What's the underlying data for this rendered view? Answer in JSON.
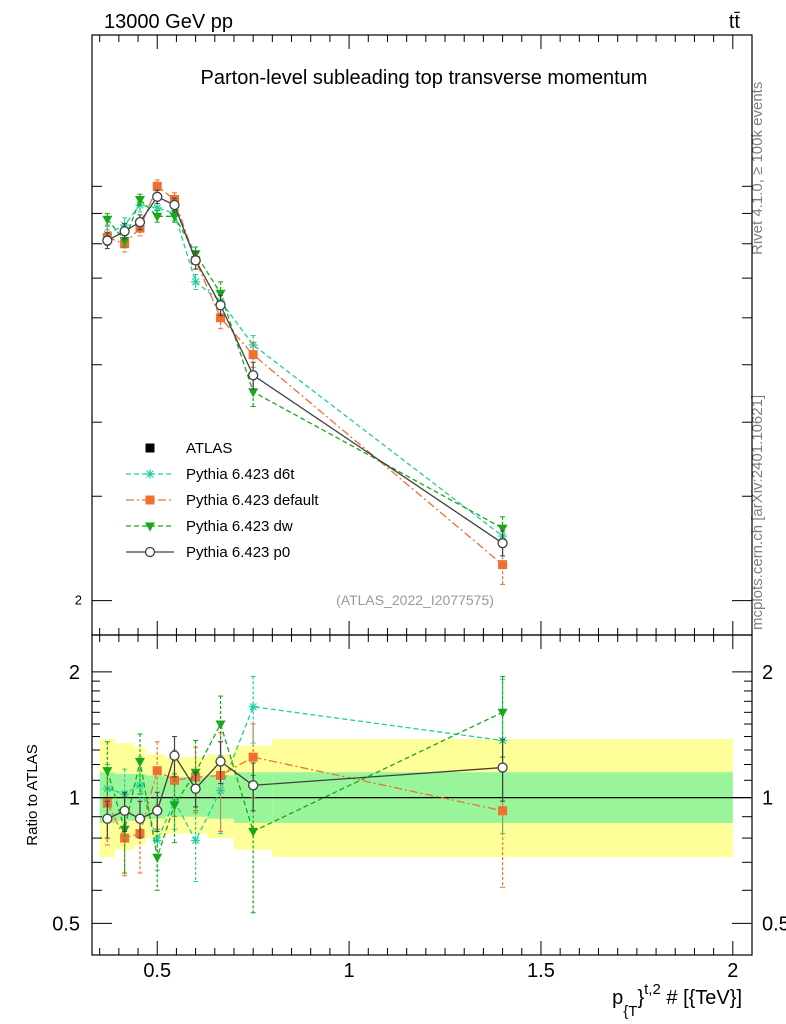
{
  "header": {
    "energy_label": "13000 GeV pp",
    "process_label": "tt̄"
  },
  "side_labels": {
    "rivet": "Rivet 4.1.0, ≥ 100k events",
    "source": "mcplots.cern.ch [arXiv:2401.10621]"
  },
  "chart_data": [
    {
      "type": "line",
      "title": "Parton-level subleading top transverse momentum",
      "analysis_id": "(ATLAS_2022_I2077575)",
      "xlabel": "p_{T}^{t,2} # [{TeV}]",
      "ylabel": "",
      "yscale": "log",
      "xlim": [
        0.33,
        2.05
      ],
      "ylim": [
        1.75,
        18.0
      ],
      "y_tick_labels": [
        "2"
      ],
      "legend_position": "middle-left",
      "series": [
        {
          "name": "ATLAS",
          "color": "#000000",
          "marker": "square",
          "style": "none",
          "x": [
            0.37,
            0.415,
            0.455,
            0.5,
            0.545,
            0.6,
            0.665,
            0.75,
            1.4
          ],
          "y": [
            8.1,
            8.4,
            8.7,
            9.6,
            9.3,
            7.5,
            6.3,
            4.8,
            2.5
          ]
        },
        {
          "name": "Pythia 6.423 d6t",
          "color": "#1fd0a0",
          "marker": "asterisk",
          "style": "dashed",
          "x": [
            0.37,
            0.415,
            0.455,
            0.5,
            0.545,
            0.6,
            0.665,
            0.75,
            1.4
          ],
          "y": [
            8.3,
            8.6,
            9.3,
            9.2,
            9.0,
            6.9,
            6.4,
            5.4,
            2.57
          ],
          "err": [
            0.25,
            0.25,
            0.25,
            0.25,
            0.25,
            0.2,
            0.2,
            0.2,
            0.08
          ]
        },
        {
          "name": "Pythia 6.423 default",
          "color": "#f07030",
          "marker": "square",
          "style": "dashdot",
          "x": [
            0.37,
            0.415,
            0.455,
            0.5,
            0.545,
            0.6,
            0.665,
            0.75,
            1.4
          ],
          "y": [
            8.2,
            8.0,
            8.5,
            10.0,
            9.5,
            7.5,
            6.0,
            5.2,
            2.3
          ],
          "err": [
            0.25,
            0.25,
            0.25,
            0.25,
            0.25,
            0.25,
            0.25,
            0.25,
            0.17
          ]
        },
        {
          "name": "Pythia 6.423 dw",
          "color": "#18a818",
          "marker": "triangle-down",
          "style": "dashed",
          "x": [
            0.37,
            0.415,
            0.455,
            0.5,
            0.545,
            0.6,
            0.665,
            0.75,
            1.4
          ],
          "y": [
            8.8,
            8.1,
            9.5,
            8.9,
            8.9,
            7.7,
            6.6,
            4.5,
            2.65
          ],
          "err": [
            0.2,
            0.2,
            0.2,
            0.2,
            0.2,
            0.2,
            0.3,
            0.25,
            0.12
          ]
        },
        {
          "name": "Pythia 6.423 p0",
          "color": "#404040",
          "marker": "circle",
          "style": "solid",
          "x": [
            0.37,
            0.415,
            0.455,
            0.5,
            0.545,
            0.6,
            0.665,
            0.75,
            1.4
          ],
          "y": [
            8.1,
            8.4,
            8.7,
            9.6,
            9.3,
            7.5,
            6.3,
            4.8,
            2.5
          ],
          "err": [
            0.25,
            0.25,
            0.25,
            0.25,
            0.25,
            0.25,
            0.25,
            0.25,
            0.12
          ]
        }
      ]
    },
    {
      "type": "line",
      "title": "",
      "xlabel": "p_{T}^{t,2} # [{TeV}]",
      "ylabel": "Ratio to ATLAS",
      "yscale": "log",
      "xlim": [
        0.33,
        2.05
      ],
      "ylim": [
        0.42,
        2.45
      ],
      "y_tick_labels": [
        "0.5",
        "1",
        "2"
      ],
      "x_tick_labels": [
        "0.5",
        "1",
        "1.5",
        "2"
      ],
      "bands": {
        "edges": [
          0.35,
          0.39,
          0.44,
          0.47,
          0.52,
          0.57,
          0.63,
          0.7,
          0.8,
          2.0
        ],
        "inner": [
          [
            0.87,
            1.15
          ],
          [
            0.88,
            1.14
          ],
          [
            0.88,
            1.14
          ],
          [
            0.89,
            1.13
          ],
          [
            0.9,
            1.12
          ],
          [
            0.9,
            1.12
          ],
          [
            0.89,
            1.13
          ],
          [
            0.87,
            1.15
          ],
          [
            0.87,
            1.15
          ]
        ],
        "outer": [
          [
            0.72,
            1.38
          ],
          [
            0.75,
            1.35
          ],
          [
            0.77,
            1.32
          ],
          [
            0.8,
            1.27
          ],
          [
            0.82,
            1.25
          ],
          [
            0.82,
            1.25
          ],
          [
            0.8,
            1.27
          ],
          [
            0.75,
            1.33
          ],
          [
            0.72,
            1.38
          ]
        ]
      },
      "series": [
        {
          "name": "Pythia 6.423 d6t",
          "color": "#1fd0a0",
          "marker": "asterisk",
          "style": "dashed",
          "x": [
            0.37,
            0.415,
            0.455,
            0.5,
            0.545,
            0.6,
            0.665,
            0.75,
            1.4
          ],
          "y": [
            1.05,
            1.02,
            1.07,
            0.79,
            0.98,
            0.79,
            1.04,
            1.65,
            1.37
          ],
          "err": [
            0.15,
            0.15,
            0.18,
            0.12,
            0.14,
            0.16,
            0.22,
            0.3,
            0.55
          ]
        },
        {
          "name": "Pythia 6.423 default",
          "color": "#f07030",
          "marker": "square",
          "style": "dashdot",
          "x": [
            0.37,
            0.415,
            0.455,
            0.5,
            0.545,
            0.6,
            0.665,
            0.75,
            1.4
          ],
          "y": [
            0.97,
            0.8,
            0.82,
            1.16,
            1.1,
            1.12,
            1.13,
            1.25,
            0.93
          ],
          "err": [
            0.2,
            0.15,
            0.16,
            0.2,
            0.2,
            0.2,
            0.3,
            0.25,
            0.32
          ]
        },
        {
          "name": "Pythia 6.423 dw",
          "color": "#18a818",
          "marker": "triangle-down",
          "style": "dashed",
          "x": [
            0.37,
            0.415,
            0.455,
            0.5,
            0.545,
            0.6,
            0.665,
            0.75,
            1.4
          ],
          "y": [
            1.16,
            0.84,
            1.22,
            0.72,
            0.96,
            1.15,
            1.5,
            0.83,
            1.6
          ],
          "err": [
            0.2,
            0.18,
            0.2,
            0.12,
            0.18,
            0.22,
            0.25,
            0.3,
            0.35
          ]
        },
        {
          "name": "Pythia 6.423 p0",
          "color": "#404040",
          "marker": "circle",
          "style": "solid",
          "x": [
            0.37,
            0.415,
            0.455,
            0.5,
            0.545,
            0.6,
            0.665,
            0.75,
            1.4
          ],
          "y": [
            0.89,
            0.93,
            0.89,
            0.93,
            1.26,
            1.05,
            1.22,
            1.07,
            1.18
          ],
          "err": [
            0.09,
            0.1,
            0.09,
            0.1,
            0.14,
            0.1,
            0.14,
            0.14,
            0.2
          ]
        }
      ]
    }
  ]
}
